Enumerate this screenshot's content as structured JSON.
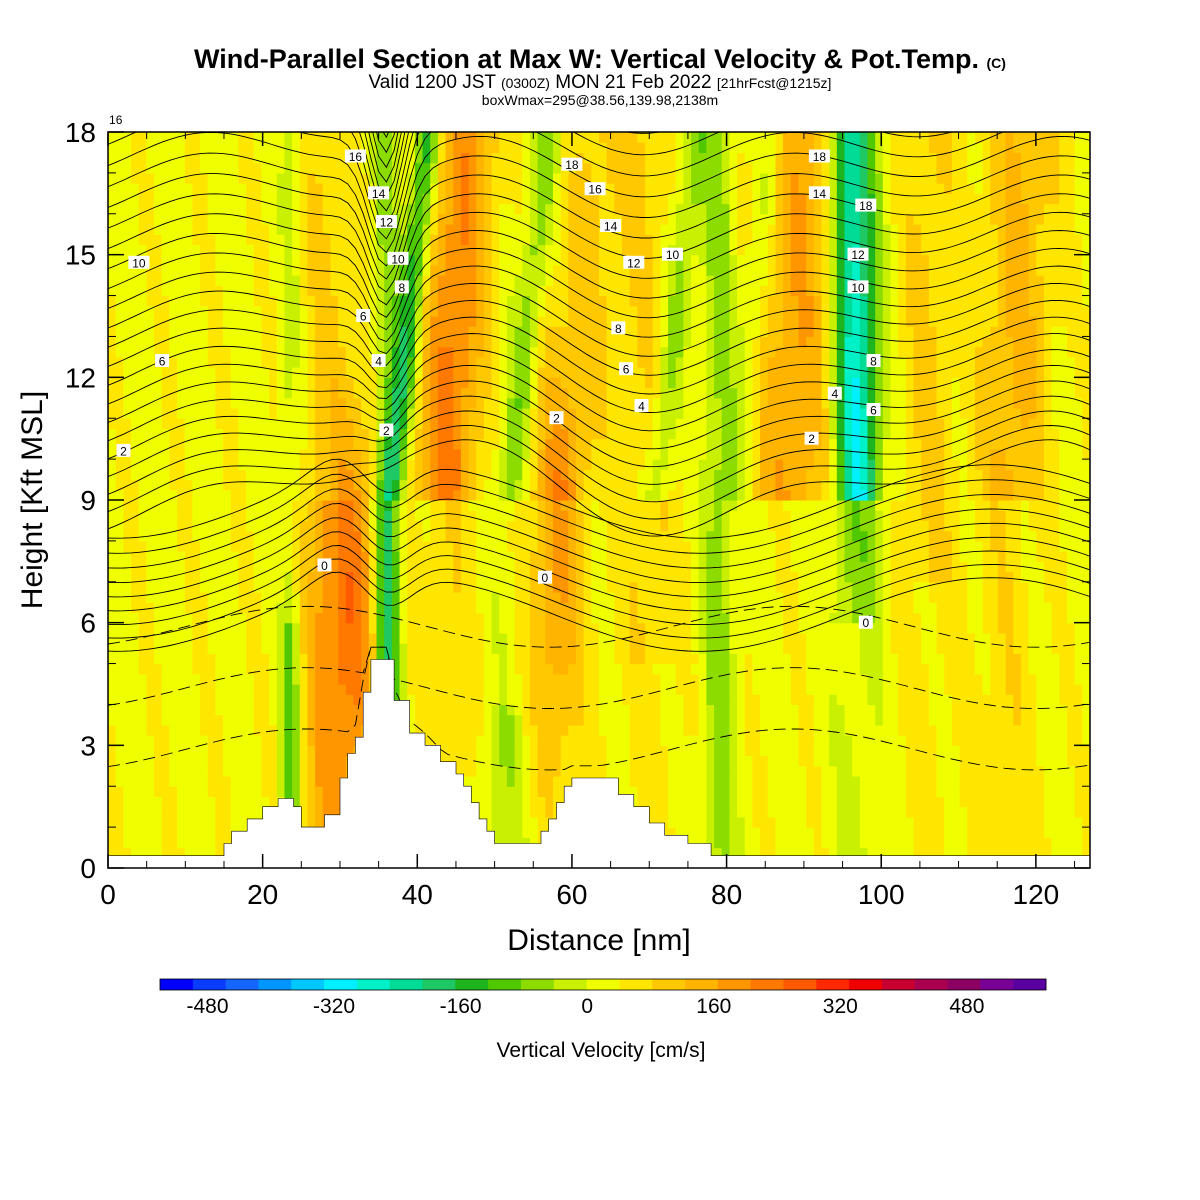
{
  "titles": {
    "main": "Wind-Parallel Section at Max W: Vertical Velocity & Pot.Temp.",
    "main_suffix": "(C)",
    "valid_prefix": "Valid 1200 JST",
    "valid_zulu": "(0300Z)",
    "valid_date": "MON 21 Feb 2022",
    "valid_fcst": "[21hrFcst@1215z]",
    "boxinfo": "boxWmax=295@38.56,139.98,2138m"
  },
  "chart_data": {
    "type": "heatmap",
    "xlabel": "Distance [nm]",
    "ylabel": "Height [Kft MSL]",
    "xlim": [
      0,
      127
    ],
    "ylim": [
      0,
      18
    ],
    "xticks": [
      "0",
      "20",
      "40",
      "60",
      "80",
      "100",
      "120"
    ],
    "yticks": [
      "0",
      "3",
      "6",
      "9",
      "12",
      "15",
      "18"
    ],
    "colorbar": {
      "label": "Vertical Velocity [cm/s]",
      "tick_labels": [
        "-480",
        "-320",
        "-160",
        "0",
        "160",
        "320",
        "480"
      ],
      "tick_values": [
        -480,
        -320,
        -160,
        0,
        160,
        320,
        480
      ],
      "range": [
        -540,
        580
      ],
      "colors": [
        "#0000ff",
        "#0a3cff",
        "#1466ff",
        "#0096ff",
        "#00c8ff",
        "#00f0ff",
        "#00f0c8",
        "#00dc96",
        "#1ec864",
        "#1eb41e",
        "#50c800",
        "#8cdc00",
        "#c8f000",
        "#f0ff00",
        "#ffe600",
        "#ffc800",
        "#ffb400",
        "#ff9600",
        "#ff7800",
        "#ff5a00",
        "#ff2800",
        "#f00000",
        "#c80032",
        "#aa0050",
        "#8c0064",
        "#780096",
        "#5a00a0"
      ]
    },
    "field": "vertical_velocity",
    "contour_field": "potential_temperature",
    "contour_labels": [
      "16",
      "16",
      "14",
      "12",
      "10",
      "8",
      "6",
      "4",
      "2",
      "0",
      "10",
      "6",
      "2",
      "18",
      "16",
      "14",
      "12",
      "10",
      "8",
      "6",
      "4",
      "2",
      "0",
      "18",
      "14",
      "18",
      "12",
      "10",
      "8",
      "4",
      "6",
      "2",
      "0"
    ],
    "terrain_profile_kft": [
      [
        0,
        0.3
      ],
      [
        14,
        0.3
      ],
      [
        15,
        0.6
      ],
      [
        16,
        0.9
      ],
      [
        18,
        1.2
      ],
      [
        20,
        1.5
      ],
      [
        22,
        1.7
      ],
      [
        24,
        1.5
      ],
      [
        25,
        1.0
      ],
      [
        27,
        1.0
      ],
      [
        28,
        1.3
      ],
      [
        30,
        2.2
      ],
      [
        31,
        2.8
      ],
      [
        32,
        3.2
      ],
      [
        33,
        4.3
      ],
      [
        34,
        5.1
      ],
      [
        36,
        5.1
      ],
      [
        37,
        4.1
      ],
      [
        39,
        3.3
      ],
      [
        41,
        3.0
      ],
      [
        43,
        2.6
      ],
      [
        45,
        2.3
      ],
      [
        46,
        2.0
      ],
      [
        47,
        1.6
      ],
      [
        48,
        1.2
      ],
      [
        49,
        0.9
      ],
      [
        50,
        0.6
      ],
      [
        55,
        0.6
      ],
      [
        56,
        0.9
      ],
      [
        57,
        1.2
      ],
      [
        58,
        1.6
      ],
      [
        59,
        2.0
      ],
      [
        60,
        2.2
      ],
      [
        64,
        2.2
      ],
      [
        66,
        1.8
      ],
      [
        68,
        1.5
      ],
      [
        70,
        1.1
      ],
      [
        72,
        0.8
      ],
      [
        75,
        0.6
      ],
      [
        78,
        0.3
      ],
      [
        127,
        0.3
      ]
    ],
    "max_w_cms": 295
  }
}
